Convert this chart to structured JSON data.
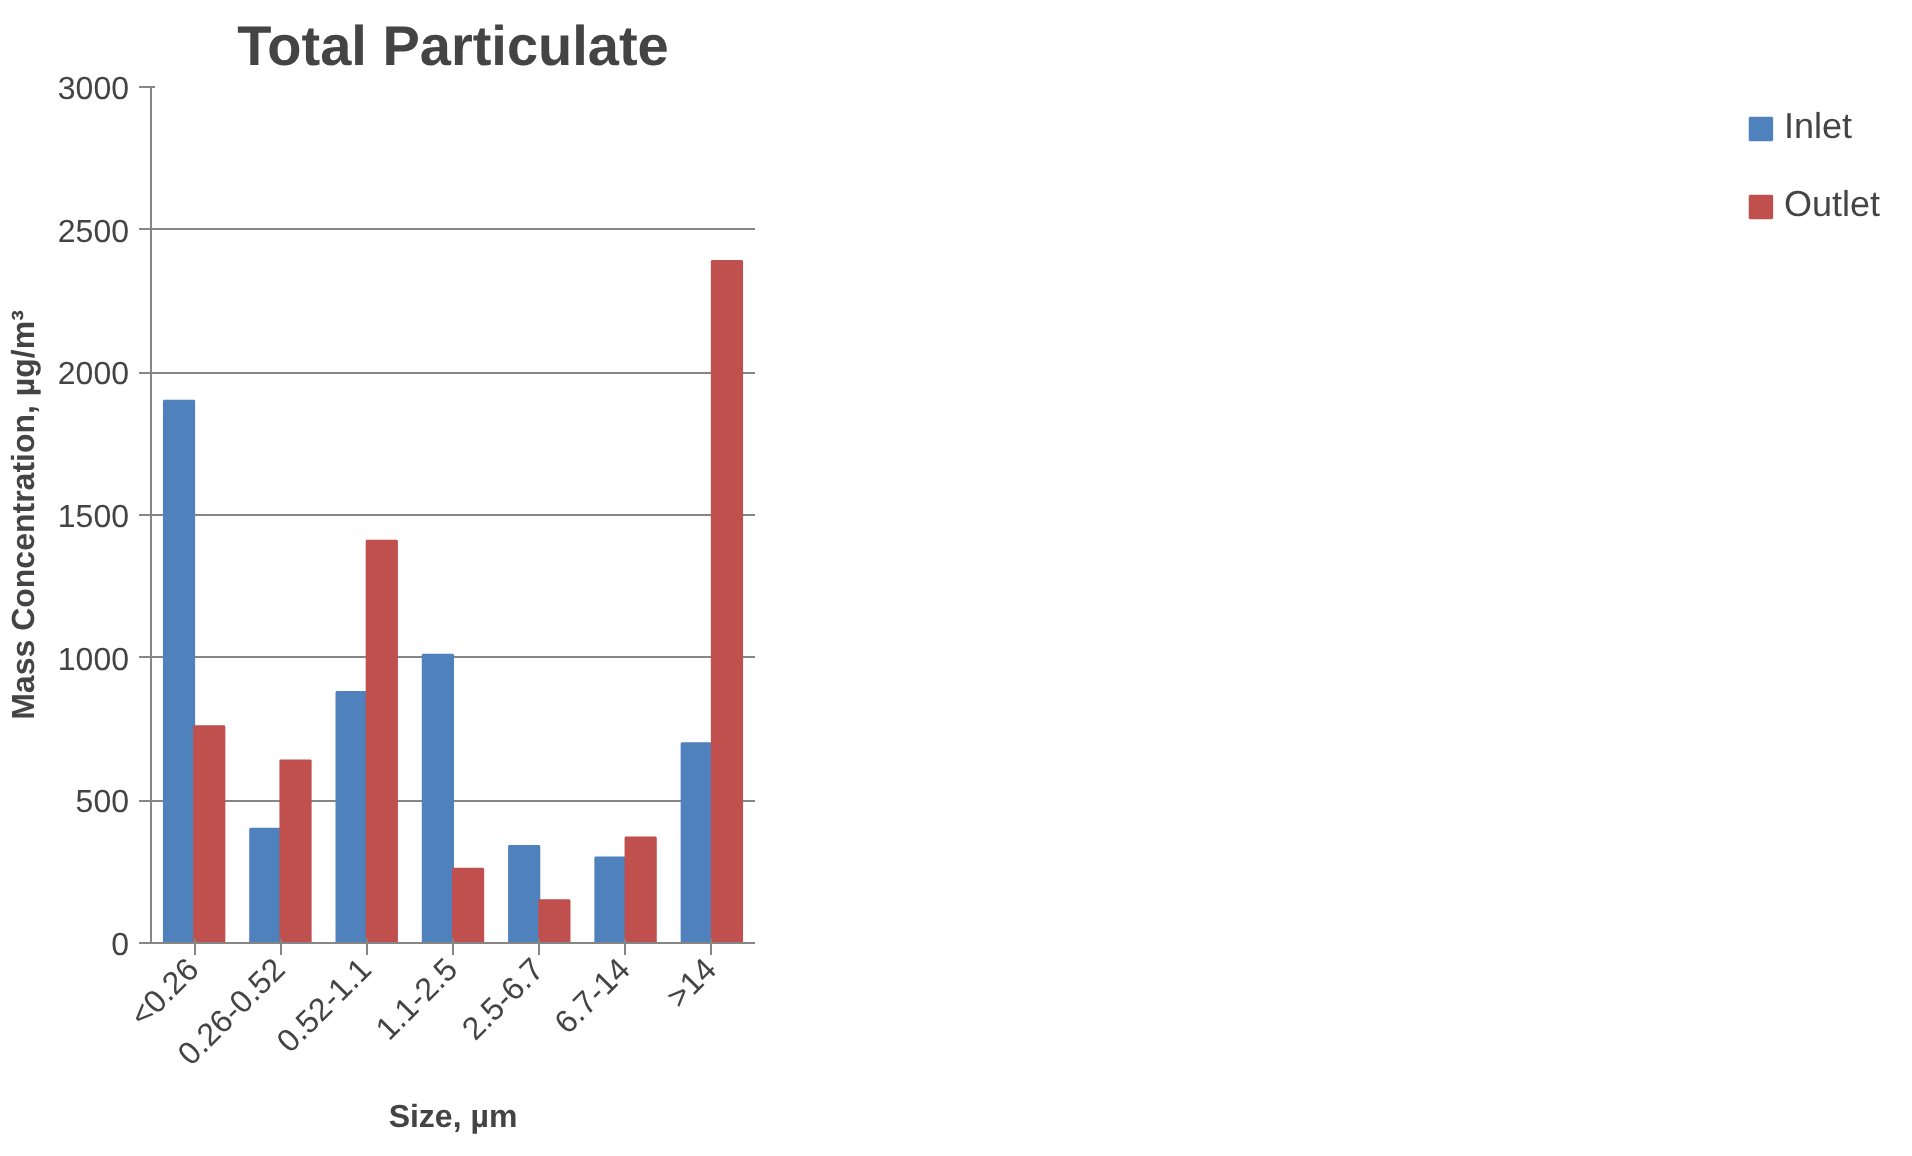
{
  "chart_data": {
    "type": "bar",
    "title": "Total Particulate",
    "xlabel": "Size, µm",
    "ylabel": "Mass Concentration, µg/m³",
    "categories": [
      "<0.26",
      "0.26-0.52",
      "0.52-1.1",
      "1.1-2.5",
      "2.5-6.7",
      "6.7-14",
      ">14"
    ],
    "series": [
      {
        "name": "Inlet",
        "color": "#4f81bd",
        "values": [
          1900,
          400,
          880,
          1010,
          340,
          300,
          700
        ]
      },
      {
        "name": "Outlet",
        "color": "#c0504d",
        "values": [
          760,
          640,
          1410,
          260,
          150,
          370,
          2390
        ]
      }
    ],
    "ylim": [
      0,
      3000
    ],
    "yticks": [
      0,
      500,
      1000,
      1500,
      2000,
      2500,
      3000
    ],
    "grid": "y",
    "legend": "right"
  }
}
